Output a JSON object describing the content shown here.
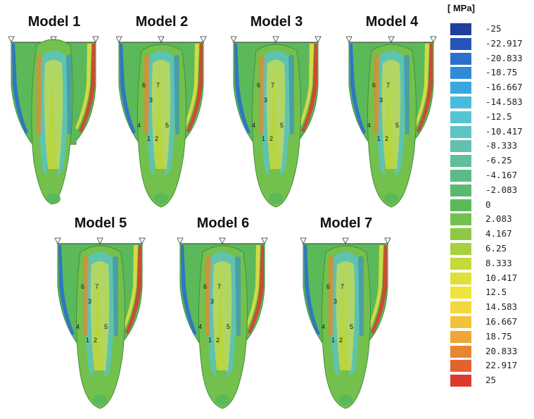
{
  "models": [
    {
      "title": "Model 1",
      "labels": []
    },
    {
      "title": "Model 2",
      "labels": [
        "6",
        "7",
        "3",
        "4",
        "5",
        "1",
        "2"
      ]
    },
    {
      "title": "Model 3",
      "labels": [
        "6",
        "7",
        "3",
        "4",
        "5",
        "1",
        "2"
      ]
    },
    {
      "title": "Model 4",
      "labels": [
        "6",
        "7",
        "3",
        "4",
        "5",
        "1",
        "2"
      ]
    },
    {
      "title": "Model 5",
      "labels": [
        "6",
        "7",
        "3",
        "4",
        "5",
        "1",
        "2"
      ]
    },
    {
      "title": "Model 6",
      "labels": [
        "6",
        "7",
        "3",
        "4",
        "5",
        "1",
        "2"
      ]
    },
    {
      "title": "Model 7",
      "labels": [
        "6",
        "7",
        "3",
        "4",
        "5",
        "1",
        "2"
      ]
    }
  ],
  "legend": {
    "unit": "[ MPa]",
    "levels": [
      {
        "value": "-25",
        "color": "#1f3f9e"
      },
      {
        "value": "-22.917",
        "color": "#2456b8"
      },
      {
        "value": "-20.833",
        "color": "#2a70cc"
      },
      {
        "value": "-18.75",
        "color": "#2f8ad8"
      },
      {
        "value": "-16.667",
        "color": "#36a7e0"
      },
      {
        "value": "-14.583",
        "color": "#47bddd"
      },
      {
        "value": "-12.5",
        "color": "#58c4d3"
      },
      {
        "value": "-10.417",
        "color": "#5ec5c4"
      },
      {
        "value": "-8.333",
        "color": "#62c2b0"
      },
      {
        "value": "-6.25",
        "color": "#5fbf9a"
      },
      {
        "value": "-4.167",
        "color": "#5cbb84"
      },
      {
        "value": "-2.083",
        "color": "#5ab870"
      },
      {
        "value": "0",
        "color": "#5cb95a"
      },
      {
        "value": "2.083",
        "color": "#74c04c"
      },
      {
        "value": "4.167",
        "color": "#8ec845"
      },
      {
        "value": "6.25",
        "color": "#a8d03f"
      },
      {
        "value": "8.333",
        "color": "#c5d93a"
      },
      {
        "value": "10.417",
        "color": "#dfe03a"
      },
      {
        "value": "12.5",
        "color": "#efe33d"
      },
      {
        "value": "14.583",
        "color": "#f3d83d"
      },
      {
        "value": "16.667",
        "color": "#f2c23a"
      },
      {
        "value": "18.75",
        "color": "#eea636"
      },
      {
        "value": "20.833",
        "color": "#e98532"
      },
      {
        "value": "22.917",
        "color": "#e4622d"
      },
      {
        "value": "25",
        "color": "#dc3a2a"
      }
    ]
  }
}
